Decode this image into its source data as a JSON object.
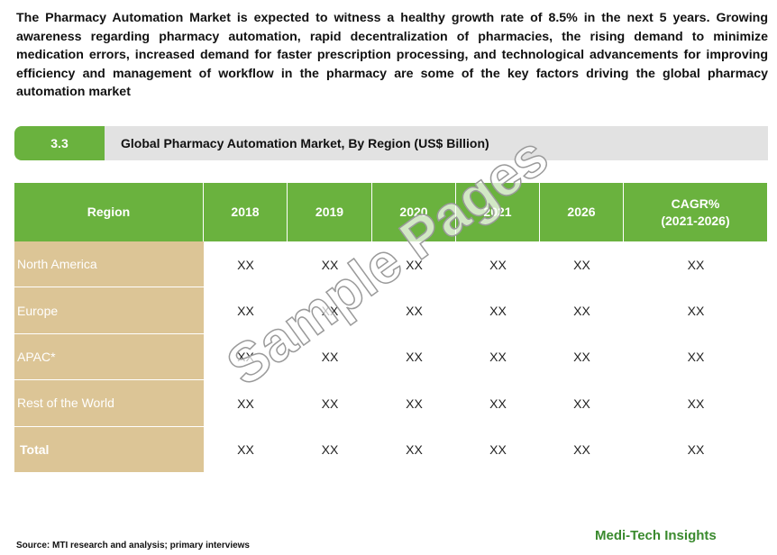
{
  "intro": "The Pharmacy Automation Market is expected to witness a healthy growth rate of 8.5% in the next 5 years. Growing awareness regarding pharmacy automation, rapid decentralization of pharmacies, the rising demand to minimize medication errors, increased demand for faster prescription processing, and technological advancements for improving efficiency and management of workflow in the pharmacy are some of the key factors driving the global pharmacy automation market",
  "section": {
    "number": "3.3",
    "title": "Global Pharmacy Automation Market, By Region (US$ Billion)"
  },
  "table": {
    "header": [
      "Region",
      "2018",
      "2019",
      "2020",
      "2021",
      "2026",
      "CAGR%\n(2021-2026)"
    ],
    "rows": [
      [
        "North America",
        "XX",
        "XX",
        "XX",
        "XX",
        "XX",
        "XX"
      ],
      [
        "Europe",
        "XX",
        "XX",
        "XX",
        "XX",
        "XX",
        "XX"
      ],
      [
        "APAC*",
        "XX",
        "XX",
        "XX",
        "XX",
        "XX",
        "XX"
      ],
      [
        "Rest of the World",
        "XX",
        "XX",
        "XX",
        "XX",
        "XX",
        "XX"
      ],
      [
        "Total",
        "XX",
        "XX",
        "XX",
        "XX",
        "XX",
        "XX"
      ]
    ]
  },
  "watermark": "Sample Pages",
  "source": "Source: MTI research and analysis; primary interviews",
  "logo": "Medi-Tech Insights"
}
